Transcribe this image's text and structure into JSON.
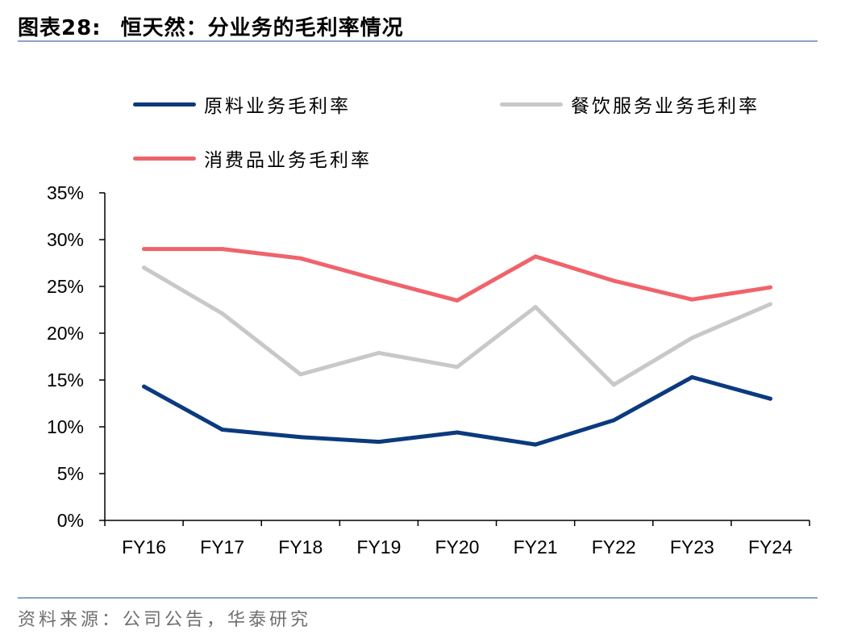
{
  "header": {
    "figure_label": "图表28:",
    "title": "恒天然：分业务的毛利率情况"
  },
  "footer": {
    "source": "资料来源：公司公告，华泰研究"
  },
  "colors": {
    "rule": "#8aa3c7",
    "axis": "#000000"
  },
  "chart_data": {
    "type": "line",
    "categories": [
      "FY16",
      "FY17",
      "FY18",
      "FY19",
      "FY20",
      "FY21",
      "FY22",
      "FY23",
      "FY24"
    ],
    "y_ticks": [
      "0%",
      "5%",
      "10%",
      "15%",
      "20%",
      "25%",
      "30%",
      "35%"
    ],
    "ylim": [
      0,
      35
    ],
    "y_unit": "%",
    "grid": false,
    "legend_position": "top",
    "series": [
      {
        "name": "原料业务毛利率",
        "color": "#0b3a7e",
        "values": [
          14.3,
          9.7,
          8.9,
          8.4,
          9.4,
          8.1,
          10.7,
          15.3,
          13.0
        ]
      },
      {
        "name": "餐饮服务业务毛利率",
        "color": "#c8c8c8",
        "values": [
          27.0,
          22.1,
          15.6,
          17.9,
          16.4,
          22.8,
          14.5,
          19.5,
          23.1
        ]
      },
      {
        "name": "消费品业务毛利率",
        "color": "#f0636b",
        "values": [
          29.0,
          29.0,
          28.0,
          25.7,
          23.5,
          28.2,
          25.6,
          23.6,
          24.9
        ]
      }
    ]
  }
}
